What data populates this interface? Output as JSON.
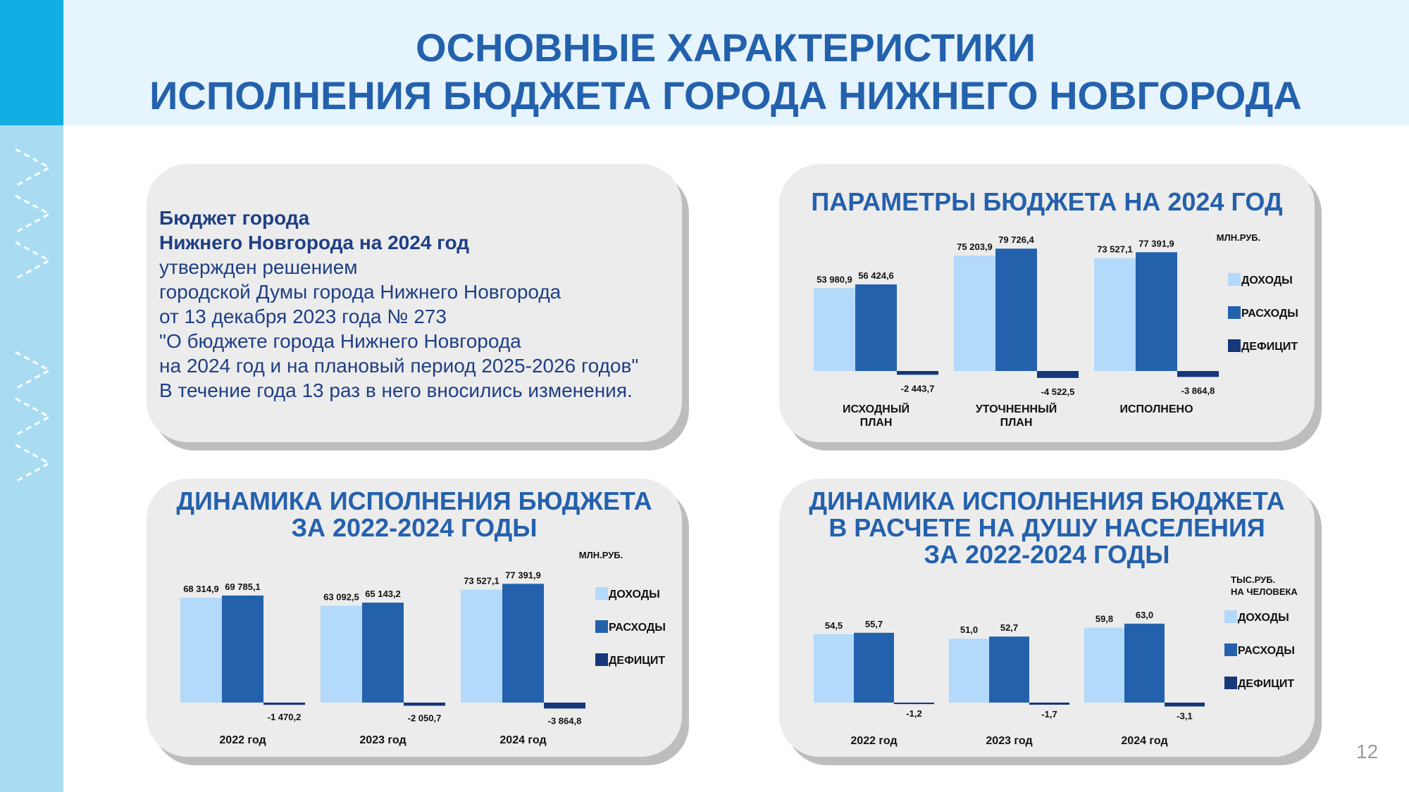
{
  "title": {
    "line1": "ОСНОВНЫЕ ХАРАКТЕРИСТИКИ",
    "line2": "ИСПОЛНЕНИЯ БЮДЖЕТА ГОРОДА НИЖНЕГО НОВГОРОДА"
  },
  "text_card": {
    "bold_line1": "Бюджет города",
    "bold_line2": "Нижнего Новгорода на 2024 год",
    "lines": [
      "утвержден решением",
      "городской Думы города Нижнего Новгорода",
      "от 13 декабря 2023 года № 273",
      "\"О бюджете города Нижнего Новгорода",
      "на 2024 год и на плановый период 2025-2026 годов\"",
      "В течение года 13 раз в него вносились изменения."
    ]
  },
  "page_number": "12",
  "colors": {
    "income": "#b3d9fb",
    "expenses": "#2461ad",
    "deficit": "#16377a",
    "title": "#2461ad",
    "card": "#ececec"
  },
  "chart_data": [
    {
      "id": "params",
      "type": "bar",
      "title": "ПАРАМЕТРЫ БЮДЖЕТА НА 2024 ГОД",
      "unit_lines": [
        "МЛН.РУБ."
      ],
      "categories": [
        [
          "ИСХОДНЫЙ",
          "ПЛАН"
        ],
        [
          "УТОЧНЕННЫЙ",
          "ПЛАН"
        ],
        [
          "ИСПОЛНЕНО"
        ]
      ],
      "series": [
        {
          "name": "ДОХОДЫ",
          "values": [
            53980.9,
            75203.9,
            73527.1
          ],
          "labels": [
            "53 980,9",
            "75 203,9",
            "73 527,1"
          ]
        },
        {
          "name": "РАСХОДЫ",
          "values": [
            56424.6,
            79726.4,
            77391.9
          ],
          "labels": [
            "56 424,6",
            "79 726,4",
            "77 391,9"
          ]
        },
        {
          "name": "ДЕФИЦИТ",
          "values": [
            -2443.7,
            -4522.5,
            -3864.8
          ],
          "labels": [
            "-2 443,7",
            "-4 522,5",
            "-3 864,8"
          ]
        }
      ],
      "legend_position": "right",
      "grid": false
    },
    {
      "id": "dynamics",
      "type": "bar",
      "title": "ДИНАМИКА ИСПОЛНЕНИЯ БЮДЖЕТА ЗА 2022-2024 ГОДЫ",
      "title_lines": [
        "ДИНАМИКА ИСПОЛНЕНИЯ БЮДЖЕТА",
        "ЗА 2022-2024 ГОДЫ"
      ],
      "unit_lines": [
        "МЛН.РУБ."
      ],
      "categories": [
        [
          "2022 год"
        ],
        [
          "2023 год"
        ],
        [
          "2024 год"
        ]
      ],
      "series": [
        {
          "name": "ДОХОДЫ",
          "values": [
            68314.9,
            63092.5,
            73527.1
          ],
          "labels": [
            "68 314,9",
            "63 092,5",
            "73 527,1"
          ]
        },
        {
          "name": "РАСХОДЫ",
          "values": [
            69785.1,
            65143.2,
            77391.9
          ],
          "labels": [
            "69 785,1",
            "65 143,2",
            "77 391,9"
          ]
        },
        {
          "name": "ДЕФИЦИТ",
          "values": [
            -1470.2,
            -2050.7,
            -3864.8
          ],
          "labels": [
            "-1 470,2",
            "-2 050,7",
            "-3 864,8"
          ]
        }
      ],
      "legend_position": "right",
      "grid": false
    },
    {
      "id": "percapita",
      "type": "bar",
      "title": "ДИНАМИКА ИСПОЛНЕНИЯ БЮДЖЕТА В РАСЧЕТЕ НА ДУШУ НАСЕЛЕНИЯ ЗА 2022-2024 ГОДЫ",
      "title_lines": [
        "ДИНАМИКА ИСПОЛНЕНИЯ БЮДЖЕТА",
        "В РАСЧЕТЕ НА ДУШУ НАСЕЛЕНИЯ",
        "ЗА 2022-2024 ГОДЫ"
      ],
      "unit_lines": [
        "ТЫС.РУБ.",
        "НА ЧЕЛОВЕКА"
      ],
      "categories": [
        [
          "2022 год"
        ],
        [
          "2023 год"
        ],
        [
          "2024 год"
        ]
      ],
      "series": [
        {
          "name": "ДОХОДЫ",
          "values": [
            54.5,
            51.0,
            59.8
          ],
          "labels": [
            "54,5",
            "51,0",
            "59,8"
          ]
        },
        {
          "name": "РАСХОДЫ",
          "values": [
            55.7,
            52.7,
            63.0
          ],
          "labels": [
            "55,7",
            "52,7",
            "63,0"
          ]
        },
        {
          "name": "ДЕФИЦИТ",
          "values": [
            -1.2,
            -1.7,
            -3.1
          ],
          "labels": [
            "-1,2",
            "-1,7",
            "-3,1"
          ]
        }
      ],
      "legend_position": "right",
      "grid": false
    }
  ]
}
